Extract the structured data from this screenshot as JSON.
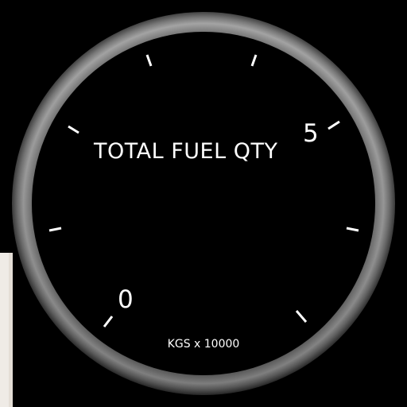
{
  "gauge": {
    "title": "TOTAL FUEL QTY",
    "units": "KGS x 10000",
    "scale_labels": {
      "min": "0",
      "max": "5"
    },
    "colors": {
      "face": "#000000",
      "bezel": "#8a8a8a",
      "markings": "#ffffff"
    }
  }
}
